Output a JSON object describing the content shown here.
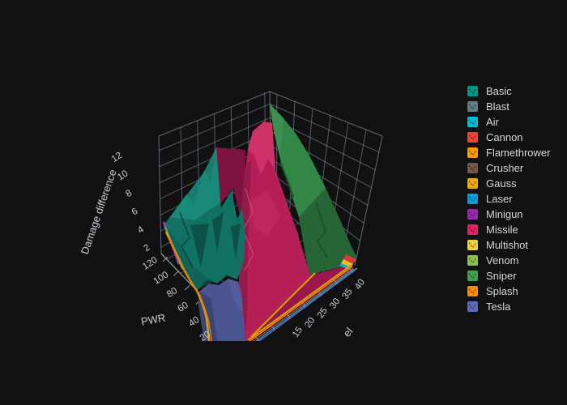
{
  "background": "#111111",
  "chart_data": {
    "type": "surface",
    "title": "",
    "legend_position": "right",
    "zaxis": {
      "title": "Damage difference",
      "ticks": [
        2,
        4,
        6,
        8,
        10,
        12
      ]
    },
    "xaxis": {
      "title": "PWR",
      "ticks": [
        120,
        100,
        80,
        60,
        40,
        20
      ]
    },
    "yaxis": {
      "title_visible": "el",
      "ticks": [
        15,
        20,
        25,
        30,
        35,
        40
      ]
    },
    "grid_color": "#93a7bd",
    "series": [
      {
        "name": "Basic",
        "color": "#009688",
        "approx_peak_z": 9
      },
      {
        "name": "Blast",
        "color": "#607d8b",
        "approx_peak_z": 1
      },
      {
        "name": "Air",
        "color": "#00bcd4",
        "approx_peak_z": 1
      },
      {
        "name": "Cannon",
        "color": "#f44336",
        "approx_peak_z": 1
      },
      {
        "name": "Flamethrower",
        "color": "#fb9902",
        "approx_peak_z": 1
      },
      {
        "name": "Crusher",
        "color": "#795548",
        "approx_peak_z": 1
      },
      {
        "name": "Gauss",
        "color": "#efa90b",
        "approx_peak_z": 1
      },
      {
        "name": "Laser",
        "color": "#059fe0",
        "approx_peak_z": 1
      },
      {
        "name": "Minigun",
        "color": "#9c27b0",
        "approx_peak_z": 2
      },
      {
        "name": "Missile",
        "color": "#e91e63",
        "approx_peak_z": 11
      },
      {
        "name": "Multishot",
        "color": "#f0d03c",
        "approx_peak_z": 1
      },
      {
        "name": "Venom",
        "color": "#8bc34a",
        "approx_peak_z": 1
      },
      {
        "name": "Sniper",
        "color": "#42a14c",
        "approx_peak_z": 13
      },
      {
        "name": "Splash",
        "color": "#fb8c00",
        "approx_peak_z": 1
      },
      {
        "name": "Tesla",
        "color": "#5c6bc0",
        "approx_peak_z": 2
      }
    ]
  }
}
